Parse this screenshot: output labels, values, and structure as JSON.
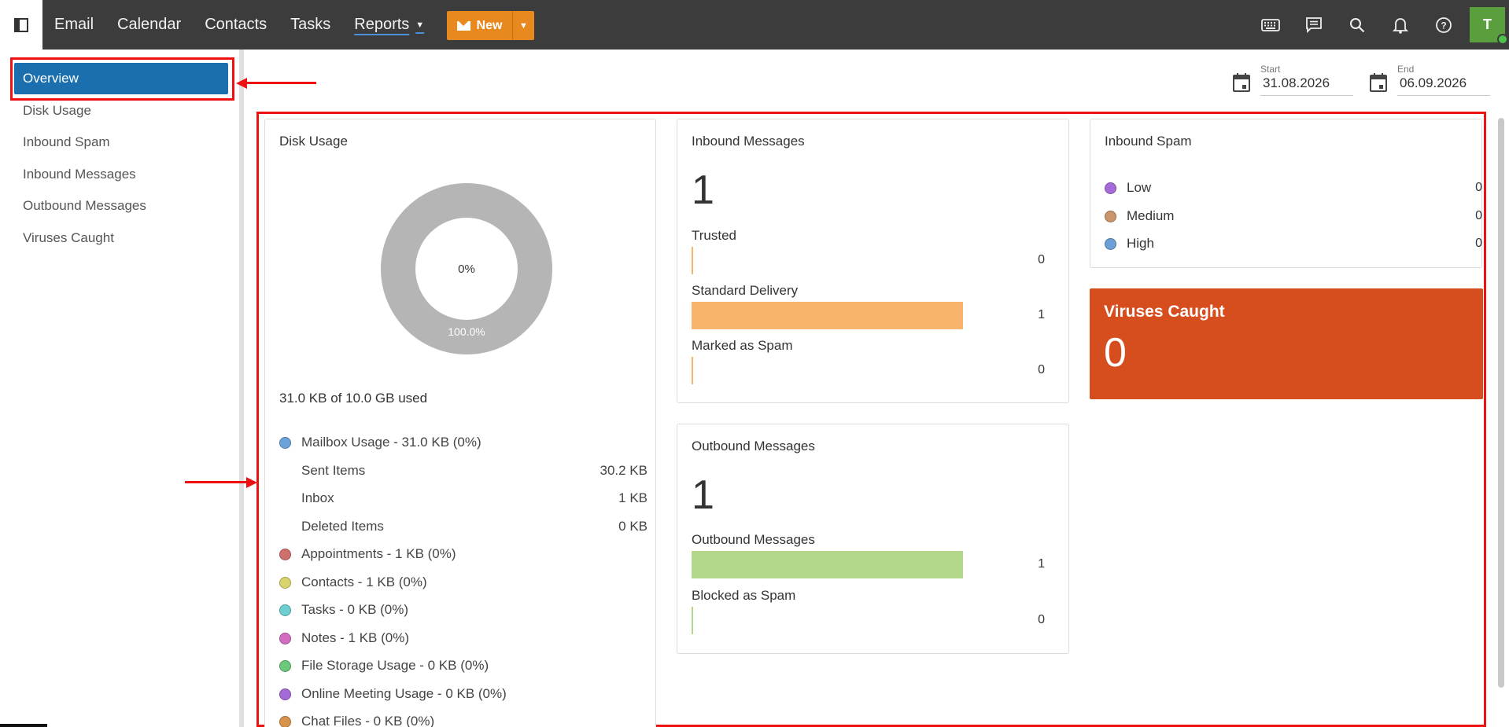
{
  "topbar": {
    "nav": [
      "Email",
      "Calendar",
      "Contacts",
      "Tasks",
      "Reports"
    ],
    "active_nav": "Reports",
    "new_label": "New",
    "avatar_initial": "T",
    "colors": {
      "bar": "#3c3c3c",
      "new_button": "#e8891f",
      "avatar": "#5a9e3e"
    },
    "icons": [
      "keyboard-icon",
      "chat-icon",
      "search-icon",
      "bell-icon",
      "help-icon"
    ]
  },
  "sidebar": {
    "items": [
      "Overview",
      "Disk Usage",
      "Inbound Spam",
      "Inbound Messages",
      "Outbound Messages",
      "Viruses Caught"
    ],
    "active": "Overview"
  },
  "date_range": {
    "start_label": "Start",
    "start_value": "31.08.2026",
    "end_label": "End",
    "end_value": "06.09.2026"
  },
  "disk_usage": {
    "title": "Disk Usage",
    "donut_center": "0%",
    "donut_label": "100.0%",
    "used_text": "31.0 KB of 10.0 GB used",
    "mailbox": {
      "label": "Mailbox Usage - 31.0 KB (0%)",
      "color": "#6aa3db",
      "folders": [
        {
          "name": "Sent Items",
          "size": "30.2 KB"
        },
        {
          "name": "Inbox",
          "size": "1 KB"
        },
        {
          "name": "Deleted Items",
          "size": "0 KB"
        }
      ]
    },
    "categories": [
      {
        "label": "Appointments - 1 KB (0%)",
        "color": "#d0706c"
      },
      {
        "label": "Contacts - 1 KB (0%)",
        "color": "#d9d56e"
      },
      {
        "label": "Tasks - 0 KB (0%)",
        "color": "#6dd0d0"
      },
      {
        "label": "Notes - 1 KB (0%)",
        "color": "#d36cc0"
      },
      {
        "label": "File Storage Usage - 0 KB (0%)",
        "color": "#6cc97c"
      },
      {
        "label": "Online Meeting Usage - 0 KB (0%)",
        "color": "#a46ad8"
      },
      {
        "label": "Chat Files - 0 KB (0%)",
        "color": "#d9924c"
      }
    ]
  },
  "inbound_messages": {
    "title": "Inbound Messages",
    "total": "1",
    "bar_color": "#f7b46a",
    "rows": [
      {
        "label": "Trusted",
        "value": "0",
        "fraction": 0
      },
      {
        "label": "Standard Delivery",
        "value": "1",
        "fraction": 1
      },
      {
        "label": "Marked as Spam",
        "value": "0",
        "fraction": 0
      }
    ]
  },
  "outbound_messages": {
    "title": "Outbound Messages",
    "total": "1",
    "bar_color": "#b3d78a",
    "rows": [
      {
        "label": "Outbound Messages",
        "value": "1",
        "fraction": 1
      },
      {
        "label": "Blocked as Spam",
        "value": "0",
        "fraction": 0
      }
    ]
  },
  "inbound_spam": {
    "title": "Inbound Spam",
    "rows": [
      {
        "label": "Low",
        "value": "0",
        "color": "#a66ad9"
      },
      {
        "label": "Medium",
        "value": "0",
        "color": "#c9956a"
      },
      {
        "label": "High",
        "value": "0",
        "color": "#6c9fd6"
      }
    ]
  },
  "viruses": {
    "title": "Viruses Caught",
    "value": "0",
    "color": "#d64e1e"
  }
}
